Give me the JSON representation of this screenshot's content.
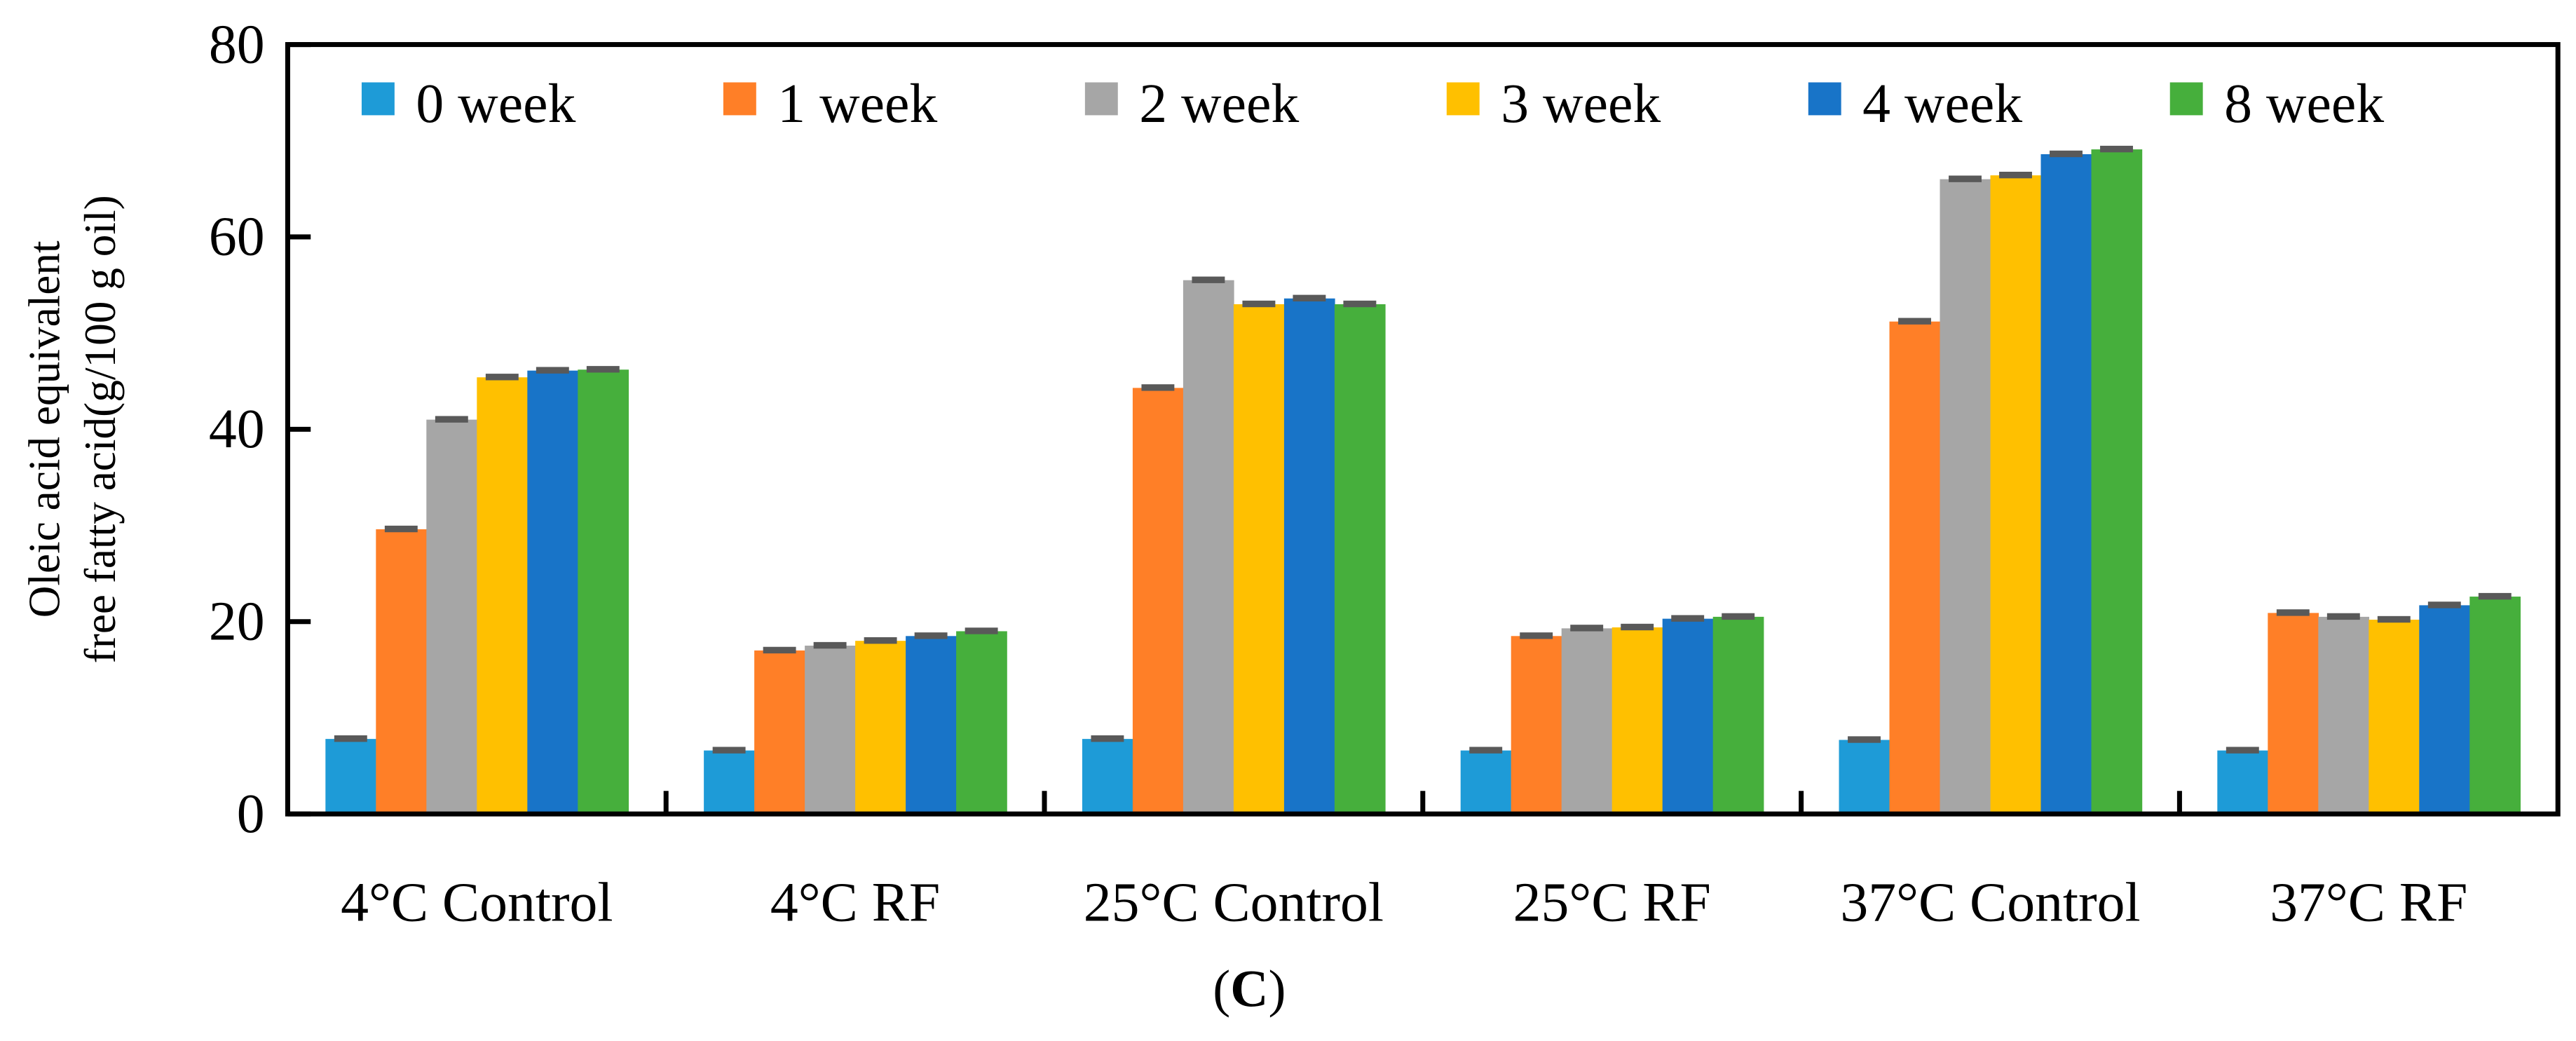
{
  "chart_data": {
    "type": "bar",
    "title": "",
    "panel_label": "C",
    "xlabel": "",
    "ylabel_lines": [
      "Oleic acid equivalent",
      "free fatty acid(g/100 g oil)"
    ],
    "ylim": [
      0,
      80
    ],
    "yticks": [
      0,
      20,
      40,
      60,
      80
    ],
    "grid": false,
    "legend_position": "top",
    "categories": [
      "4°C Control",
      "4°C RF",
      "25°C Control",
      "25°C RF",
      "37°C Control",
      "37°C RF"
    ],
    "series": [
      {
        "name": "0 week",
        "color": "#1E9BD7",
        "values": [
          7.8,
          6.6,
          7.8,
          6.6,
          7.7,
          6.6
        ]
      },
      {
        "name": "1 week",
        "color": "#FF7F27",
        "values": [
          29.6,
          17.0,
          44.3,
          18.5,
          51.2,
          20.9
        ]
      },
      {
        "name": "2 week",
        "color": "#A6A6A6",
        "values": [
          41.0,
          17.5,
          55.5,
          19.3,
          66.0,
          20.5
        ]
      },
      {
        "name": "3 week",
        "color": "#FFC000",
        "values": [
          45.4,
          18.0,
          53.0,
          19.4,
          66.4,
          20.2
        ]
      },
      {
        "name": "4 week",
        "color": "#1874C8",
        "values": [
          46.1,
          18.5,
          53.6,
          20.3,
          68.6,
          21.7
        ]
      },
      {
        "name": "8 week",
        "color": "#46AF3C",
        "values": [
          46.2,
          19.0,
          53.0,
          20.5,
          69.1,
          22.6
        ]
      }
    ],
    "error_bar_color": "#595959"
  }
}
